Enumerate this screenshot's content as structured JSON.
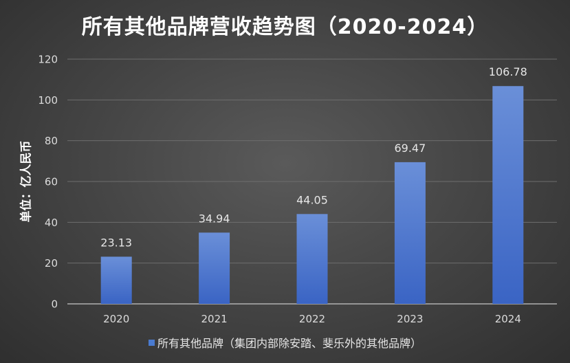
{
  "chart_data": {
    "type": "bar",
    "title": "所有其他品牌营收趋势图（2020-2024）",
    "ylabel": "单位：亿人民币",
    "xlabel": "",
    "categories": [
      "2020",
      "2021",
      "2022",
      "2023",
      "2024"
    ],
    "series": [
      {
        "name": "所有其他品牌（集团内部除安踏、斐乐外的其他品牌）",
        "values": [
          23.13,
          34.94,
          44.05,
          69.47,
          106.78
        ],
        "color": "#4a7bd0"
      }
    ],
    "data_labels": [
      "23.13",
      "34.94",
      "44.05",
      "69.47",
      "106.78"
    ],
    "ylim": [
      0,
      120
    ],
    "yticks": [
      0,
      20,
      40,
      60,
      80,
      100,
      120
    ],
    "grid": true,
    "legend_position": "bottom"
  }
}
